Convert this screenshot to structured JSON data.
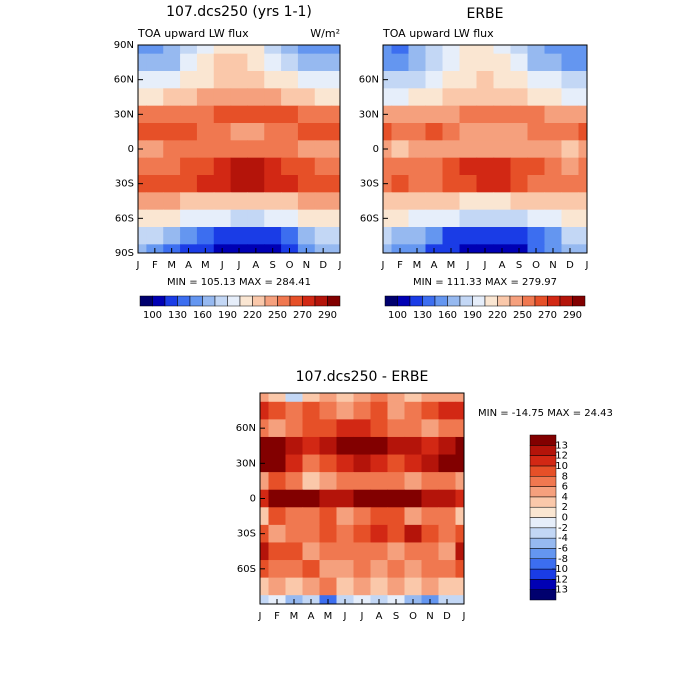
{
  "chart_data": [
    {
      "type": "contour",
      "title": "107.dcs250 (yrs 1-1)",
      "subtitle": "TOA upward LW flux",
      "units": "W/m²",
      "stats": "MIN = 105.13 MAX = 284.41",
      "x": [
        "J",
        "F",
        "M",
        "A",
        "M",
        "J",
        "J",
        "A",
        "S",
        "O",
        "N",
        "D",
        "J"
      ],
      "y": [
        90,
        75,
        60,
        45,
        30,
        15,
        0,
        -15,
        -30,
        -45,
        -60,
        -75,
        -90
      ],
      "ylim": [
        90,
        -90
      ],
      "yticks": [
        {
          "value": 90,
          "label": "90N"
        },
        {
          "value": 60,
          "label": "60N"
        },
        {
          "value": 30,
          "label": "30N"
        },
        0,
        {
          "value": -30,
          "label": "30S"
        },
        {
          "value": -60,
          "label": "60S"
        },
        {
          "value": -90,
          "label": "90S"
        }
      ],
      "z": [
        [
          150,
          145,
          160,
          180,
          200,
          210,
          215,
          205,
          185,
          165,
          155,
          150,
          150
        ],
        [
          165,
          160,
          170,
          190,
          210,
          220,
          225,
          215,
          200,
          180,
          170,
          165,
          165
        ],
        [
          195,
          190,
          195,
          205,
          215,
          225,
          230,
          225,
          215,
          205,
          200,
          195,
          195
        ],
        [
          215,
          215,
          220,
          225,
          235,
          240,
          245,
          245,
          235,
          225,
          220,
          215,
          215
        ],
        [
          255,
          255,
          255,
          255,
          255,
          260,
          265,
          265,
          260,
          260,
          258,
          255,
          255
        ],
        [
          265,
          265,
          265,
          262,
          258,
          252,
          248,
          248,
          250,
          255,
          262,
          265,
          265
        ],
        [
          245,
          248,
          250,
          250,
          252,
          255,
          258,
          258,
          255,
          250,
          248,
          245,
          245
        ],
        [
          255,
          258,
          258,
          262,
          268,
          275,
          280,
          280,
          275,
          268,
          262,
          255,
          255
        ],
        [
          265,
          265,
          265,
          265,
          270,
          275,
          280,
          280,
          275,
          270,
          265,
          265,
          265
        ],
        [
          235,
          235,
          235,
          230,
          228,
          225,
          225,
          225,
          228,
          232,
          235,
          235,
          235
        ],
        [
          215,
          212,
          208,
          200,
          195,
          190,
          188,
          188,
          190,
          198,
          205,
          212,
          215
        ],
        [
          185,
          175,
          165,
          150,
          135,
          125,
          120,
          120,
          125,
          140,
          160,
          180,
          185
        ],
        [
          165,
          155,
          140,
          125,
          115,
          110,
          108,
          108,
          112,
          125,
          145,
          165,
          165
        ]
      ],
      "levels": [
        100,
        115,
        130,
        145,
        160,
        175,
        190,
        205,
        220,
        235,
        250,
        260,
        270,
        280,
        290
      ],
      "colorbar_ticks": [
        100,
        130,
        160,
        190,
        220,
        250,
        270,
        290
      ],
      "colors": [
        "#00006e",
        "#0000b4",
        "#1a3ce6",
        "#3c6ef0",
        "#6496f0",
        "#96b9f0",
        "#c3d7f5",
        "#e6eefa",
        "#fae6d2",
        "#fac8aa",
        "#f5a07d",
        "#f07850",
        "#e65028",
        "#d22814",
        "#b4140a",
        "#820000"
      ]
    },
    {
      "type": "contour",
      "title": "ERBE",
      "subtitle": "TOA upward LW flux",
      "stats": "MIN = 111.33 MAX = 279.97",
      "x": [
        "J",
        "F",
        "M",
        "A",
        "M",
        "J",
        "J",
        "A",
        "S",
        "O",
        "N",
        "D",
        "J"
      ],
      "y": [
        90,
        75,
        60,
        45,
        30,
        15,
        0,
        -15,
        -30,
        -45,
        -60,
        -75,
        -90
      ],
      "ylim": [
        90,
        -90
      ],
      "yticks": [
        {
          "value": 60,
          "label": "60N"
        },
        {
          "value": 30,
          "label": "30N"
        },
        0,
        {
          "value": -30,
          "label": "30S"
        },
        {
          "value": -60,
          "label": "60S"
        }
      ],
      "z": [
        [
          145,
          142,
          165,
          178,
          196,
          207,
          210,
          199,
          181,
          162,
          150,
          146,
          145
        ],
        [
          155,
          152,
          164,
          182,
          204,
          216,
          219,
          207,
          196,
          174,
          162,
          155,
          155
        ],
        [
          189,
          186,
          189,
          197,
          207,
          215,
          220,
          217,
          209,
          199,
          196,
          189,
          189
        ],
        [
          201,
          201,
          208,
          215,
          223,
          226,
          231,
          231,
          223,
          213,
          210,
          203,
          201
        ],
        [
          241,
          241,
          245,
          249,
          247,
          250,
          253,
          255,
          252,
          250,
          246,
          241,
          241
        ],
        [
          261,
          257,
          259,
          260,
          254,
          246,
          242,
          242,
          244,
          251,
          256,
          259,
          261
        ],
        [
          235,
          234,
          236,
          236,
          240,
          243,
          244,
          244,
          241,
          236,
          236,
          233,
          235
        ],
        [
          253,
          250,
          252,
          256,
          260,
          271,
          274,
          272,
          267,
          264,
          256,
          249,
          253
        ],
        [
          257,
          261,
          259,
          259,
          262,
          269,
          272,
          270,
          267,
          258,
          257,
          259,
          257
        ],
        [
          223,
          227,
          227,
          226,
          222,
          219,
          219,
          219,
          224,
          226,
          229,
          231,
          223
        ],
        [
          207,
          206,
          202,
          192,
          191,
          186,
          182,
          184,
          184,
          194,
          199,
          206,
          207
        ],
        [
          183,
          171,
          163,
          146,
          129,
          123,
          116,
          118,
          121,
          138,
          156,
          178,
          183
        ],
        [
          169,
          157,
          146,
          129,
          125,
          114,
          110,
          112,
          114,
          131,
          153,
          169,
          169
        ]
      ],
      "levels": [
        100,
        115,
        130,
        145,
        160,
        175,
        190,
        205,
        220,
        235,
        250,
        260,
        270,
        280,
        290
      ],
      "colorbar_ticks": [
        100,
        130,
        160,
        190,
        220,
        250,
        270,
        290
      ],
      "colors": [
        "#00006e",
        "#0000b4",
        "#1a3ce6",
        "#3c6ef0",
        "#6496f0",
        "#96b9f0",
        "#c3d7f5",
        "#e6eefa",
        "#fae6d2",
        "#fac8aa",
        "#f5a07d",
        "#f07850",
        "#e65028",
        "#d22814",
        "#b4140a",
        "#820000"
      ]
    },
    {
      "type": "contour",
      "title": "107.dcs250 - ERBE",
      "stats": "MIN = -14.75 MAX =  24.43",
      "x": [
        "J",
        "F",
        "M",
        "A",
        "M",
        "J",
        "J",
        "A",
        "S",
        "O",
        "N",
        "D",
        "J"
      ],
      "y": [
        90,
        75,
        60,
        45,
        30,
        15,
        0,
        -15,
        -30,
        -45,
        -60,
        -75,
        -90
      ],
      "ylim": [
        90,
        -90
      ],
      "yticks": [
        {
          "value": 60,
          "label": "60N"
        },
        {
          "value": 30,
          "label": "30N"
        },
        0,
        {
          "value": -30,
          "label": "30S"
        },
        {
          "value": -60,
          "label": "60S"
        }
      ],
      "z": [
        [
          5,
          3,
          -4,
          2,
          4,
          3,
          5,
          6,
          4,
          3,
          5,
          4,
          5
        ],
        [
          10,
          8,
          6,
          8,
          6,
          4,
          6,
          8,
          4,
          6,
          8,
          10,
          10
        ],
        [
          6,
          4,
          6,
          8,
          8,
          10,
          10,
          8,
          6,
          6,
          4,
          6,
          6
        ],
        [
          14,
          14,
          12,
          10,
          12,
          14,
          14,
          14,
          12,
          12,
          10,
          12,
          14
        ],
        [
          14,
          14,
          10,
          6,
          8,
          10,
          12,
          10,
          8,
          10,
          12,
          14,
          14
        ],
        [
          4,
          8,
          6,
          2,
          4,
          6,
          6,
          6,
          6,
          4,
          6,
          6,
          4
        ],
        [
          10,
          14,
          14,
          14,
          12,
          12,
          14,
          14,
          14,
          14,
          12,
          12,
          10
        ],
        [
          2,
          8,
          6,
          6,
          8,
          4,
          6,
          8,
          8,
          4,
          6,
          6,
          2
        ],
        [
          8,
          4,
          6,
          6,
          8,
          6,
          8,
          10,
          8,
          12,
          8,
          6,
          8
        ],
        [
          12,
          8,
          8,
          4,
          6,
          6,
          6,
          6,
          4,
          6,
          6,
          4,
          12
        ],
        [
          8,
          6,
          6,
          8,
          4,
          4,
          6,
          4,
          6,
          4,
          6,
          6,
          8
        ],
        [
          2,
          4,
          2,
          4,
          6,
          2,
          4,
          2,
          4,
          2,
          4,
          2,
          2
        ],
        [
          -4,
          -2,
          -6,
          -4,
          -10,
          -4,
          -2,
          -4,
          -2,
          -6,
          -8,
          -4,
          -4
        ]
      ],
      "levels": [
        -13,
        -12,
        -10,
        -8,
        -6,
        -4,
        -2,
        0,
        2,
        4,
        6,
        8,
        10,
        12,
        13
      ],
      "colors": [
        "#00006e",
        "#0000b4",
        "#1a3ce6",
        "#3c6ef0",
        "#6496f0",
        "#96b9f0",
        "#c3d7f5",
        "#e6eefa",
        "#fae6d2",
        "#fac8aa",
        "#f5a07d",
        "#f07850",
        "#e65028",
        "#d22814",
        "#b4140a",
        "#820000"
      ]
    }
  ]
}
